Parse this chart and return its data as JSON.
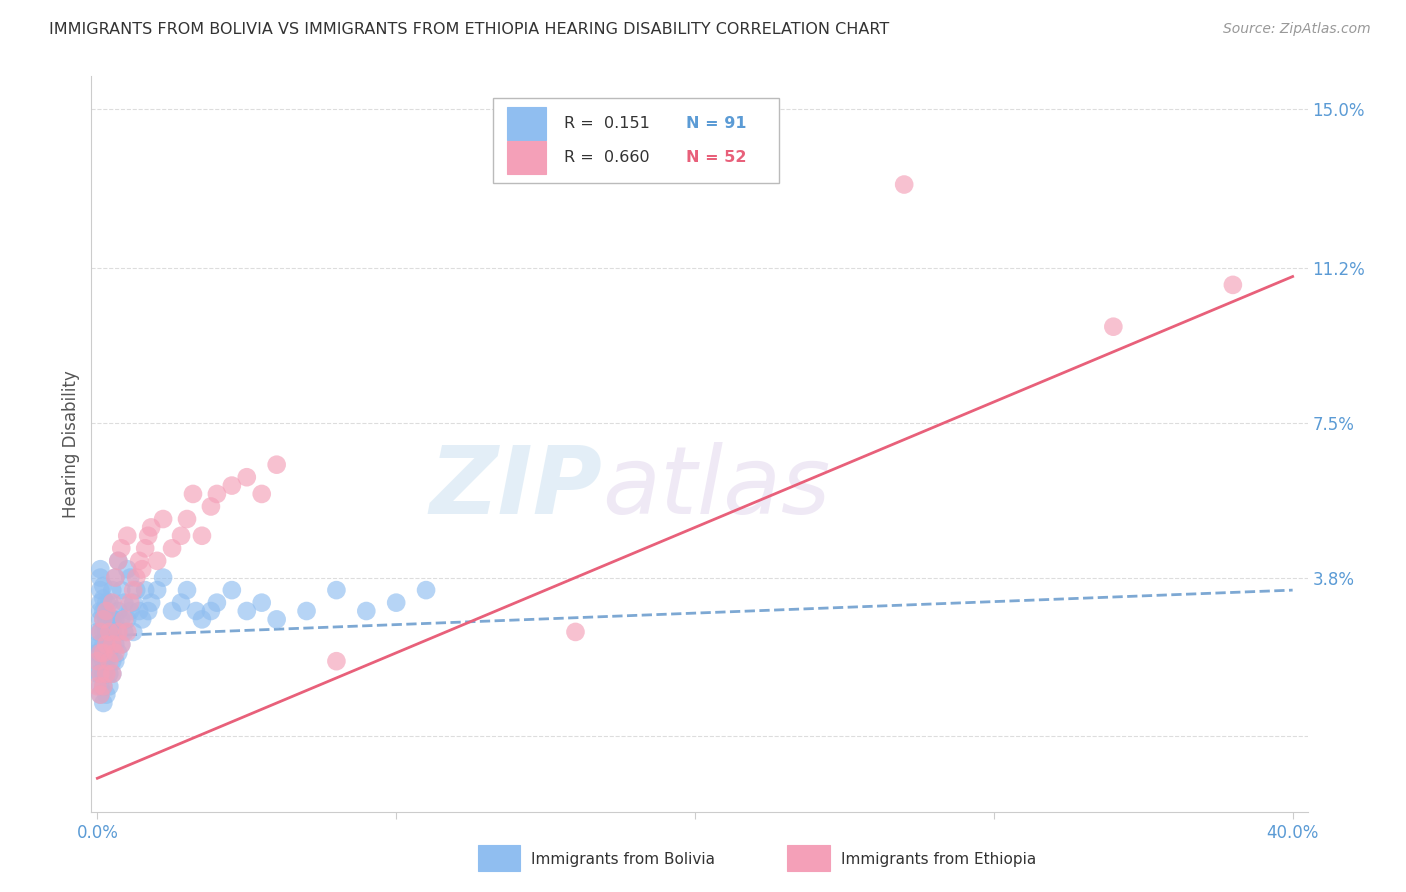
{
  "title": "IMMIGRANTS FROM BOLIVIA VS IMMIGRANTS FROM ETHIOPIA HEARING DISABILITY CORRELATION CHART",
  "source": "Source: ZipAtlas.com",
  "ylabel": "Hearing Disability",
  "y_ticks": [
    0.0,
    0.038,
    0.075,
    0.112,
    0.15
  ],
  "y_tick_labels": [
    "",
    "3.8%",
    "7.5%",
    "11.2%",
    "15.0%"
  ],
  "x_ticks": [
    0.0,
    0.1,
    0.2,
    0.3,
    0.4
  ],
  "x_tick_labels": [
    "0.0%",
    "",
    "",
    "",
    "40.0%"
  ],
  "xlim": [
    -0.002,
    0.405
  ],
  "ylim": [
    -0.018,
    0.158
  ],
  "bolivia_R": 0.151,
  "bolivia_N": 91,
  "ethiopia_R": 0.66,
  "ethiopia_N": 52,
  "bolivia_color": "#90BEF0",
  "ethiopia_color": "#F4A0B8",
  "bolivia_line_color": "#6699CC",
  "ethiopia_line_color": "#E8607A",
  "watermark_zip": "ZIP",
  "watermark_atlas": "atlas",
  "legend_label_bolivia": "Immigrants from Bolivia",
  "legend_label_ethiopia": "Immigrants from Ethiopia",
  "bolivia_x": [
    0.0,
    0.0,
    0.0,
    0.0,
    0.0,
    0.001,
    0.001,
    0.001,
    0.001,
    0.001,
    0.001,
    0.001,
    0.001,
    0.001,
    0.001,
    0.001,
    0.001,
    0.001,
    0.002,
    0.002,
    0.002,
    0.002,
    0.002,
    0.002,
    0.002,
    0.002,
    0.002,
    0.002,
    0.002,
    0.003,
    0.003,
    0.003,
    0.003,
    0.003,
    0.003,
    0.003,
    0.004,
    0.004,
    0.004,
    0.004,
    0.004,
    0.004,
    0.005,
    0.005,
    0.005,
    0.005,
    0.005,
    0.005,
    0.006,
    0.006,
    0.006,
    0.006,
    0.007,
    0.007,
    0.007,
    0.007,
    0.008,
    0.008,
    0.008,
    0.009,
    0.009,
    0.01,
    0.01,
    0.011,
    0.011,
    0.012,
    0.012,
    0.013,
    0.014,
    0.015,
    0.016,
    0.017,
    0.018,
    0.02,
    0.022,
    0.025,
    0.028,
    0.03,
    0.033,
    0.035,
    0.038,
    0.04,
    0.045,
    0.05,
    0.055,
    0.06,
    0.07,
    0.08,
    0.09,
    0.1,
    0.11
  ],
  "bolivia_y": [
    0.015,
    0.018,
    0.02,
    0.022,
    0.025,
    0.01,
    0.012,
    0.015,
    0.018,
    0.02,
    0.022,
    0.025,
    0.028,
    0.03,
    0.032,
    0.035,
    0.038,
    0.04,
    0.008,
    0.012,
    0.015,
    0.018,
    0.02,
    0.022,
    0.025,
    0.028,
    0.03,
    0.033,
    0.036,
    0.01,
    0.015,
    0.018,
    0.022,
    0.025,
    0.028,
    0.032,
    0.012,
    0.015,
    0.02,
    0.025,
    0.028,
    0.032,
    0.015,
    0.018,
    0.022,
    0.025,
    0.028,
    0.035,
    0.018,
    0.022,
    0.028,
    0.038,
    0.02,
    0.025,
    0.03,
    0.042,
    0.022,
    0.028,
    0.035,
    0.025,
    0.032,
    0.028,
    0.04,
    0.03,
    0.038,
    0.025,
    0.032,
    0.035,
    0.03,
    0.028,
    0.035,
    0.03,
    0.032,
    0.035,
    0.038,
    0.03,
    0.032,
    0.035,
    0.03,
    0.028,
    0.03,
    0.032,
    0.035,
    0.03,
    0.032,
    0.028,
    0.03,
    0.035,
    0.03,
    0.032,
    0.035
  ],
  "ethiopia_x": [
    0.0,
    0.0,
    0.001,
    0.001,
    0.001,
    0.001,
    0.002,
    0.002,
    0.002,
    0.003,
    0.003,
    0.003,
    0.004,
    0.004,
    0.005,
    0.005,
    0.005,
    0.006,
    0.006,
    0.007,
    0.007,
    0.008,
    0.008,
    0.009,
    0.01,
    0.01,
    0.011,
    0.012,
    0.013,
    0.014,
    0.015,
    0.016,
    0.017,
    0.018,
    0.02,
    0.022,
    0.025,
    0.028,
    0.03,
    0.032,
    0.035,
    0.038,
    0.04,
    0.045,
    0.05,
    0.055,
    0.06,
    0.08,
    0.16,
    0.27,
    0.34,
    0.38
  ],
  "ethiopia_y": [
    0.012,
    0.018,
    0.01,
    0.015,
    0.02,
    0.025,
    0.012,
    0.02,
    0.028,
    0.015,
    0.022,
    0.03,
    0.018,
    0.025,
    0.015,
    0.022,
    0.032,
    0.02,
    0.038,
    0.025,
    0.042,
    0.022,
    0.045,
    0.028,
    0.025,
    0.048,
    0.032,
    0.035,
    0.038,
    0.042,
    0.04,
    0.045,
    0.048,
    0.05,
    0.042,
    0.052,
    0.045,
    0.048,
    0.052,
    0.058,
    0.048,
    0.055,
    0.058,
    0.06,
    0.062,
    0.058,
    0.065,
    0.018,
    0.025,
    0.132,
    0.098,
    0.108
  ],
  "bolivia_line_x": [
    0.0,
    0.4
  ],
  "bolivia_line_y": [
    0.024,
    0.035
  ],
  "ethiopia_line_x": [
    0.0,
    0.4
  ],
  "ethiopia_line_y": [
    -0.01,
    0.11
  ]
}
